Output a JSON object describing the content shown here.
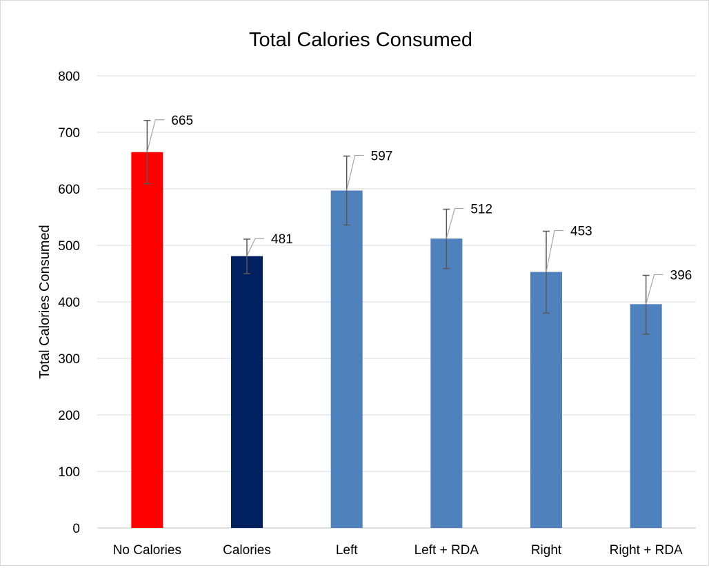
{
  "chart_data": {
    "type": "bar",
    "title": "Total Calories Consumed",
    "ylabel": "Total Calories Consumed",
    "xlabel": "",
    "categories": [
      "No Calories",
      "Calories",
      "Left",
      "Left + RDA",
      "Right",
      "Right + RDA"
    ],
    "values": [
      665,
      481,
      597,
      512,
      453,
      396
    ],
    "error_low": [
      609,
      450,
      536,
      459,
      380,
      343
    ],
    "error_high": [
      721,
      511,
      658,
      564,
      525,
      447
    ],
    "data_labels": [
      "665",
      "481",
      "597",
      "512",
      "453",
      "396"
    ],
    "bar_colors": [
      "#ff0000",
      "#002060",
      "#4f81bd",
      "#4f81bd",
      "#4f81bd",
      "#4f81bd"
    ],
    "ylim": [
      0,
      800
    ],
    "yticks": [
      0,
      100,
      200,
      300,
      400,
      500,
      600,
      700,
      800
    ],
    "grid": true,
    "legend": "none"
  }
}
